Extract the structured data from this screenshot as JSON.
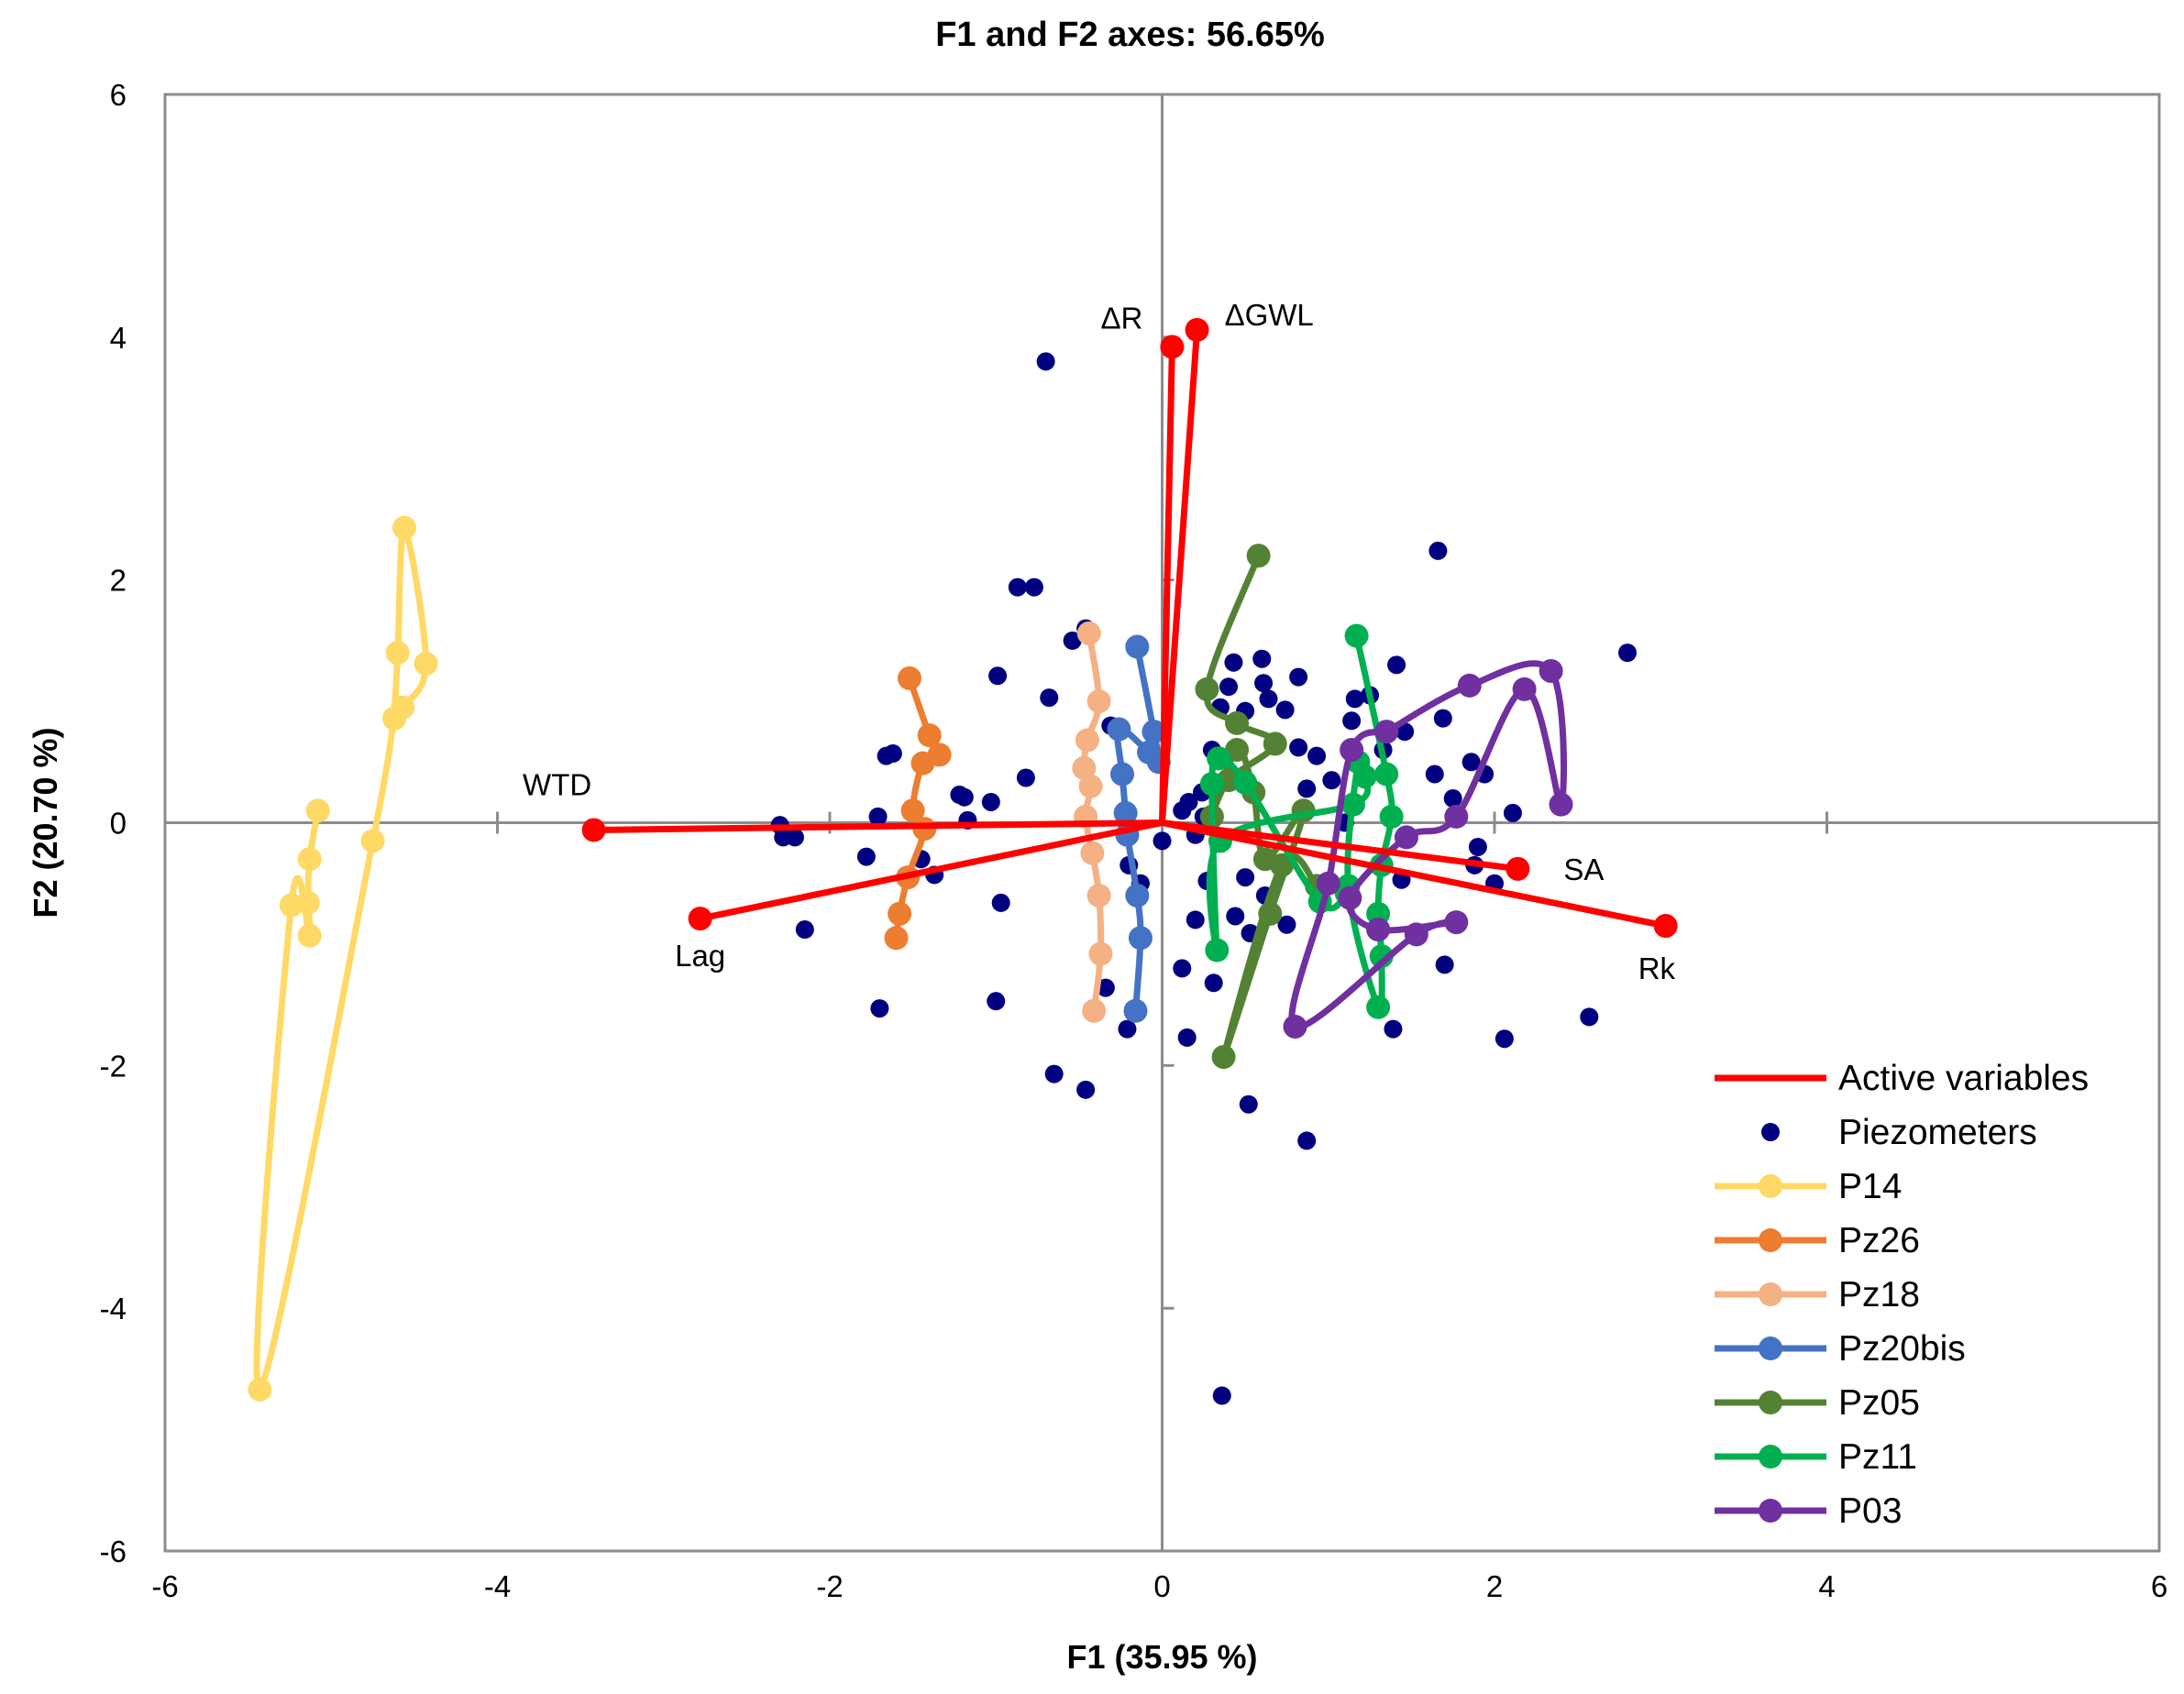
{
  "chart_data": {
    "type": "scatter",
    "title": "F1 and F2 axes: 56.65%",
    "xlabel": "F1 (35.95 %)",
    "ylabel": "F2 (20.70 %)",
    "xlim": [
      -6,
      6
    ],
    "ylim": [
      -6,
      6
    ],
    "xticks": [
      -6,
      -4,
      -2,
      0,
      2,
      4,
      6
    ],
    "yticks": [
      -6,
      -4,
      -2,
      0,
      2,
      4,
      6
    ],
    "xtick_labels": [
      "-6",
      "-4",
      "-2",
      "0",
      "2",
      "4",
      "6"
    ],
    "ytick_labels": [
      "-6",
      "-4",
      "-2",
      "0",
      "2",
      "4",
      "6"
    ],
    "legend_position": "bottom-right",
    "active_variables": {
      "name": "Active variables",
      "color": "#ff0000",
      "vectors": [
        {
          "label": "ΔR",
          "x": 0.06,
          "y": 3.92
        },
        {
          "label": "ΔGWL",
          "x": 0.21,
          "y": 4.06
        },
        {
          "label": "WTD",
          "x": -3.42,
          "y": -0.06
        },
        {
          "label": "Lag",
          "x": -2.78,
          "y": -0.79
        },
        {
          "label": "SA",
          "x": 2.14,
          "y": -0.38
        },
        {
          "label": "Rk",
          "x": 3.03,
          "y": -0.85
        }
      ]
    },
    "piezometers": {
      "name": "Piezometers",
      "color": "#000080",
      "points": [
        [
          -0.7,
          3.8
        ],
        [
          -0.87,
          1.94
        ],
        [
          -0.77,
          1.94
        ],
        [
          -0.46,
          1.6
        ],
        [
          -0.54,
          1.5
        ],
        [
          -0.99,
          1.21
        ],
        [
          -0.68,
          1.03
        ],
        [
          -2.3,
          -0.02
        ],
        [
          -2.28,
          -0.12
        ],
        [
          -2.21,
          -0.12
        ],
        [
          -2.15,
          -0.88
        ],
        [
          -1.78,
          -0.28
        ],
        [
          -1.71,
          0.05
        ],
        [
          -1.66,
          0.55
        ],
        [
          -1.62,
          0.57
        ],
        [
          -1.45,
          -0.3
        ],
        [
          -1.37,
          -0.43
        ],
        [
          -1.22,
          0.23
        ],
        [
          -1.19,
          0.21
        ],
        [
          -1.17,
          0.02
        ],
        [
          -1.03,
          0.17
        ],
        [
          -0.97,
          -0.66
        ],
        [
          -0.82,
          0.37
        ],
        [
          -1.7,
          -1.53
        ],
        [
          -1.0,
          -1.47
        ],
        [
          -0.65,
          -2.07
        ],
        [
          -0.46,
          -2.2
        ],
        [
          -0.34,
          -1.36
        ],
        [
          -0.21,
          -1.7
        ],
        [
          -0.13,
          -0.5
        ],
        [
          -0.2,
          -0.35
        ],
        [
          -0.31,
          0.8
        ],
        [
          0.12,
          0.1
        ],
        [
          0.2,
          -0.1
        ],
        [
          0.24,
          0.25
        ],
        [
          0.3,
          0.6
        ],
        [
          0.35,
          0.95
        ],
        [
          0.4,
          1.12
        ],
        [
          0.43,
          1.32
        ],
        [
          0.6,
          1.35
        ],
        [
          0.61,
          1.15
        ],
        [
          0.64,
          1.02
        ],
        [
          0.82,
          1.2
        ],
        [
          0.5,
          0.92
        ],
        [
          0.74,
          0.93
        ],
        [
          0.82,
          0.62
        ],
        [
          0.87,
          0.28
        ],
        [
          0.93,
          0.55
        ],
        [
          1.02,
          0.35
        ],
        [
          1.1,
          0.0
        ],
        [
          1.16,
          1.02
        ],
        [
          1.14,
          0.84
        ],
        [
          1.25,
          1.05
        ],
        [
          1.33,
          0.6
        ],
        [
          1.41,
          1.3
        ],
        [
          1.46,
          0.75
        ],
        [
          1.64,
          0.4
        ],
        [
          1.75,
          0.2
        ],
        [
          1.69,
          0.86
        ],
        [
          1.86,
          0.5
        ],
        [
          1.94,
          0.4
        ],
        [
          1.66,
          2.24
        ],
        [
          2.11,
          0.08
        ],
        [
          2.8,
          1.4
        ],
        [
          1.9,
          -0.2
        ],
        [
          2.0,
          -0.5
        ],
        [
          1.88,
          -0.35
        ],
        [
          1.7,
          -1.17
        ],
        [
          1.39,
          -1.7
        ],
        [
          2.06,
          -1.78
        ],
        [
          2.57,
          -1.6
        ],
        [
          1.44,
          -0.47
        ],
        [
          0.2,
          -0.8
        ],
        [
          0.15,
          -1.77
        ],
        [
          0.31,
          -1.32
        ],
        [
          0.53,
          -0.91
        ],
        [
          0.62,
          -0.6
        ],
        [
          0.5,
          -0.45
        ],
        [
          0.44,
          -0.77
        ],
        [
          0.75,
          -0.84
        ],
        [
          0.36,
          -4.72
        ],
        [
          0.52,
          -2.32
        ],
        [
          0.87,
          -2.62
        ],
        [
          0.27,
          -0.48
        ],
        [
          0.12,
          -1.2
        ],
        [
          0.0,
          -0.15
        ],
        [
          0.25,
          0.05
        ],
        [
          0.16,
          0.17
        ]
      ]
    },
    "series": [
      {
        "name": "P14",
        "color": "#ffd966",
        "points": [
          [
            -5.08,
            0.1
          ],
          [
            -5.13,
            -0.3
          ],
          [
            -5.14,
            -0.66
          ],
          [
            -5.13,
            -0.93
          ],
          [
            -5.24,
            -0.68
          ],
          [
            -5.43,
            -4.67
          ],
          [
            -4.75,
            -0.15
          ],
          [
            -4.62,
            0.86
          ],
          [
            -4.57,
            0.95
          ],
          [
            -4.43,
            1.31
          ],
          [
            -4.56,
            2.43
          ],
          [
            -4.6,
            1.4
          ],
          [
            -4.62,
            0.86
          ]
        ]
      },
      {
        "name": "Pz26",
        "color": "#ed7d31",
        "points": [
          [
            -1.52,
            1.19
          ],
          [
            -1.4,
            0.72
          ],
          [
            -1.34,
            0.56
          ],
          [
            -1.44,
            0.49
          ],
          [
            -1.5,
            0.1
          ],
          [
            -1.43,
            -0.05
          ],
          [
            -1.53,
            -0.45
          ],
          [
            -1.58,
            -0.75
          ],
          [
            -1.6,
            -0.95
          ]
        ]
      },
      {
        "name": "Pz18",
        "color": "#f4b183",
        "points": [
          [
            -0.44,
            1.56
          ],
          [
            -0.38,
            1.0
          ],
          [
            -0.45,
            0.68
          ],
          [
            -0.47,
            0.45
          ],
          [
            -0.43,
            0.3
          ],
          [
            -0.46,
            0.05
          ],
          [
            -0.42,
            -0.25
          ],
          [
            -0.38,
            -0.6
          ],
          [
            -0.37,
            -1.08
          ],
          [
            -0.41,
            -1.55
          ]
        ]
      },
      {
        "name": "Pz20bis",
        "color": "#4472c4",
        "points": [
          [
            -0.15,
            1.45
          ],
          [
            -0.05,
            0.75
          ],
          [
            -0.02,
            0.5
          ],
          [
            -0.08,
            0.58
          ],
          [
            -0.26,
            0.77
          ],
          [
            -0.24,
            0.4
          ],
          [
            -0.22,
            0.08
          ],
          [
            -0.21,
            -0.1
          ],
          [
            -0.15,
            -0.6
          ],
          [
            -0.13,
            -0.95
          ],
          [
            -0.16,
            -1.55
          ]
        ]
      },
      {
        "name": "Pz05",
        "color": "#548235",
        "points": [
          [
            0.58,
            2.2
          ],
          [
            0.27,
            1.1
          ],
          [
            0.45,
            0.82
          ],
          [
            0.68,
            0.65
          ],
          [
            0.4,
            0.35
          ],
          [
            0.3,
            0.05
          ],
          [
            0.45,
            0.6
          ],
          [
            0.55,
            0.25
          ],
          [
            0.62,
            -0.3
          ],
          [
            0.85,
            0.1
          ],
          [
            0.65,
            -0.75
          ],
          [
            0.37,
            -1.93
          ],
          [
            0.72,
            -0.35
          ],
          [
            0.93,
            -0.52
          ]
        ]
      },
      {
        "name": "Pz11",
        "color": "#00b050",
        "points": [
          [
            1.17,
            1.54
          ],
          [
            1.35,
            0.4
          ],
          [
            1.38,
            0.05
          ],
          [
            1.32,
            -0.35
          ],
          [
            1.3,
            -0.75
          ],
          [
            1.32,
            -1.1
          ],
          [
            1.3,
            -1.52
          ],
          [
            1.12,
            -0.52
          ],
          [
            1.18,
            0.5
          ],
          [
            1.22,
            0.38
          ],
          [
            1.15,
            0.15
          ],
          [
            0.35,
            -0.15
          ],
          [
            0.33,
            -1.05
          ],
          [
            0.3,
            0.32
          ],
          [
            0.34,
            0.53
          ],
          [
            0.5,
            0.33
          ],
          [
            0.95,
            -0.65
          ],
          [
            1.11,
            -0.58
          ]
        ]
      },
      {
        "name": "P03",
        "color": "#7030a0",
        "points": [
          [
            1.35,
            0.75
          ],
          [
            1.85,
            1.13
          ],
          [
            2.34,
            1.25
          ],
          [
            2.4,
            0.15
          ],
          [
            2.18,
            1.1
          ],
          [
            1.77,
            0.05
          ],
          [
            1.47,
            -0.12
          ],
          [
            1.13,
            -0.62
          ],
          [
            1.3,
            -0.88
          ],
          [
            1.77,
            -0.82
          ],
          [
            1.53,
            -0.92
          ],
          [
            0.8,
            -1.68
          ],
          [
            1.0,
            -0.5
          ],
          [
            1.14,
            0.6
          ],
          [
            1.35,
            0.75
          ]
        ]
      }
    ],
    "legend_entries": [
      "Active variables",
      "Piezometers",
      "P14",
      "Pz26",
      "Pz18",
      "Pz20bis",
      "Pz05",
      "Pz11",
      "P03"
    ]
  }
}
